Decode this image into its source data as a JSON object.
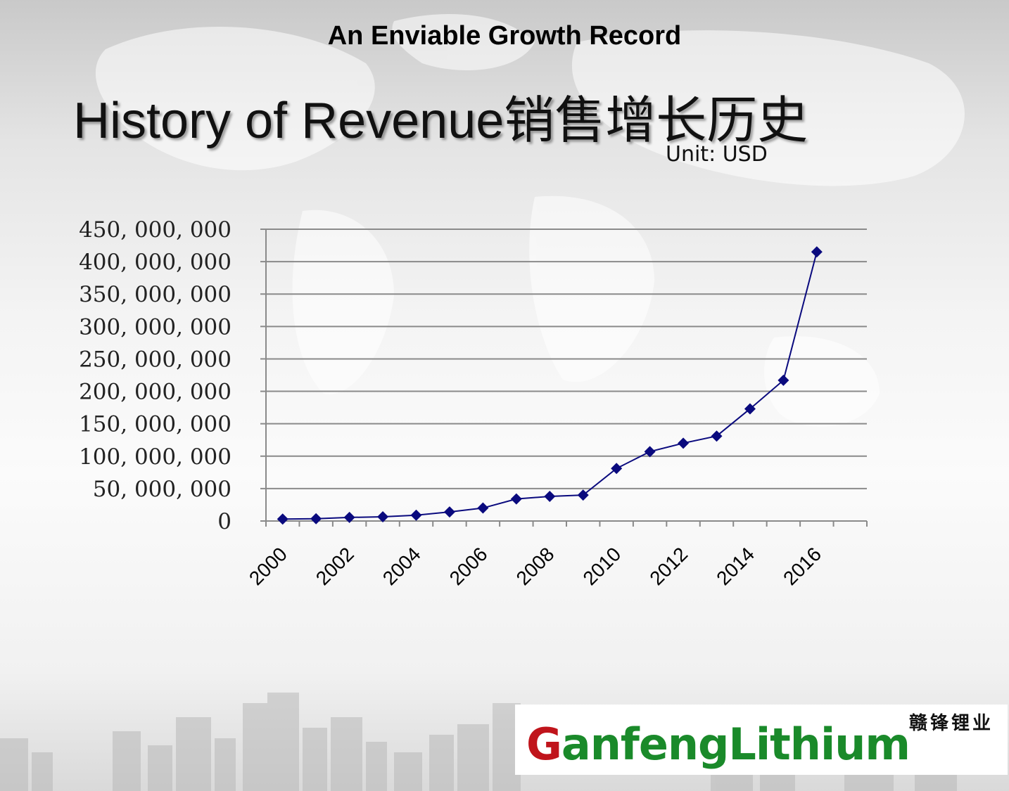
{
  "slide": {
    "subtitle": "An Enviable Growth Record",
    "title": "History of Revenue销售增长历史",
    "unit_label": "Unit:  USD"
  },
  "chart_data": {
    "type": "line",
    "title": "",
    "xlabel": "",
    "ylabel": "",
    "x": [
      2000,
      2001,
      2002,
      2003,
      2004,
      2005,
      2006,
      2007,
      2008,
      2009,
      2010,
      2011,
      2012,
      2013,
      2014,
      2015,
      2016
    ],
    "series": [
      {
        "values": [
          3000000,
          3500000,
          5500000,
          6500000,
          9000000,
          14000000,
          20000000,
          34000000,
          38000000,
          40000000,
          81000000,
          107000000,
          120000000,
          131000000,
          173000000,
          217000000,
          415000000
        ]
      }
    ],
    "x_tick_labels": [
      "2000",
      "2002",
      "2004",
      "2006",
      "2008",
      "2010",
      "2012",
      "2014",
      "2016"
    ],
    "y_tick_labels": [
      "0",
      "50, 000, 000",
      "100, 000, 000",
      "150, 000, 000",
      "200, 000, 000",
      "250, 000, 000",
      "300, 000, 000",
      "350, 000, 000",
      "400, 000, 000",
      "450, 000, 000"
    ],
    "ylim": [
      0,
      450000000
    ],
    "y_step": 50000000,
    "grid": true,
    "legend": "none",
    "line_color": "#0a0a7e",
    "marker": "diamond"
  },
  "logo": {
    "chinese": "赣锋锂业",
    "first_letter": "G",
    "rest": "anfengLithium",
    "colors": {
      "red": "#c0141b",
      "green": "#1a8a2a"
    }
  }
}
